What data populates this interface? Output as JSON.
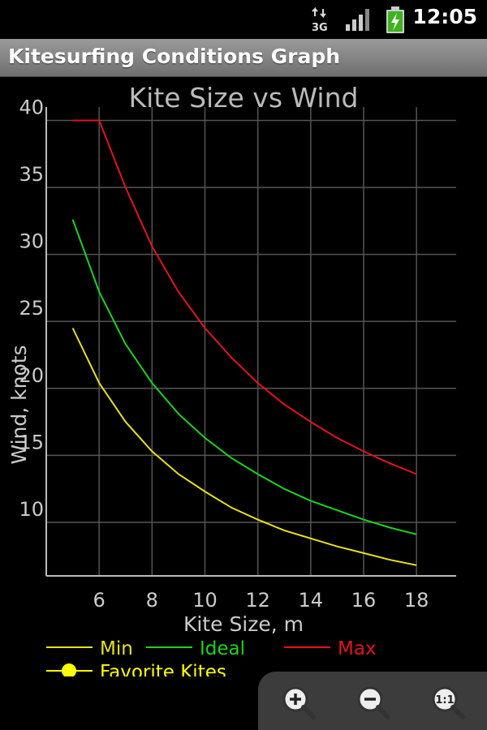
{
  "status": {
    "time": "12:05",
    "network_label": "3G",
    "icons": [
      "data-transfer-icon",
      "signal-icon",
      "battery-charging-icon"
    ]
  },
  "app": {
    "title": "Kitesurfing Conditions Graph"
  },
  "colors": {
    "min": "#e6e21c",
    "ideal": "#19d41d",
    "max": "#e0141e",
    "favorite": "#ffff00",
    "grid": "#555555",
    "axis": "#bbbbbb"
  },
  "chart_data": {
    "type": "line",
    "title": "Kite Size vs Wind",
    "xlabel": "Kite Size, m",
    "ylabel": "Wind, knots",
    "xlim": [
      4,
      19.5
    ],
    "ylim": [
      6,
      41
    ],
    "xticks": [
      6,
      8,
      10,
      12,
      14,
      16,
      18
    ],
    "yticks": [
      10,
      15,
      20,
      25,
      30,
      35,
      40
    ],
    "grid": true,
    "x": [
      5,
      6,
      7,
      8,
      9,
      10,
      11,
      12,
      13,
      14,
      15,
      16,
      17,
      18
    ],
    "series": [
      {
        "name": "Min",
        "values": [
          24.5,
          20.4,
          17.5,
          15.3,
          13.6,
          12.3,
          11.1,
          10.2,
          9.4,
          8.8,
          8.2,
          7.7,
          7.2,
          6.8
        ]
      },
      {
        "name": "Ideal",
        "values": [
          32.6,
          27.2,
          23.3,
          20.4,
          18.1,
          16.3,
          14.8,
          13.6,
          12.5,
          11.6,
          10.9,
          10.2,
          9.6,
          9.1
        ]
      },
      {
        "name": "Max",
        "values": [
          40,
          40,
          35,
          30.6,
          27.2,
          24.5,
          22.3,
          20.4,
          18.8,
          17.5,
          16.3,
          15.3,
          14.4,
          13.6
        ]
      }
    ],
    "legend": {
      "placement": "bottom-left",
      "entries": [
        "Min",
        "Ideal",
        "Max"
      ],
      "favorite_label": "Favorite Kites"
    }
  },
  "zoom": {
    "buttons": [
      "zoom-in-icon",
      "zoom-out-icon",
      "zoom-reset-icon"
    ],
    "reset_label": "1:1"
  }
}
